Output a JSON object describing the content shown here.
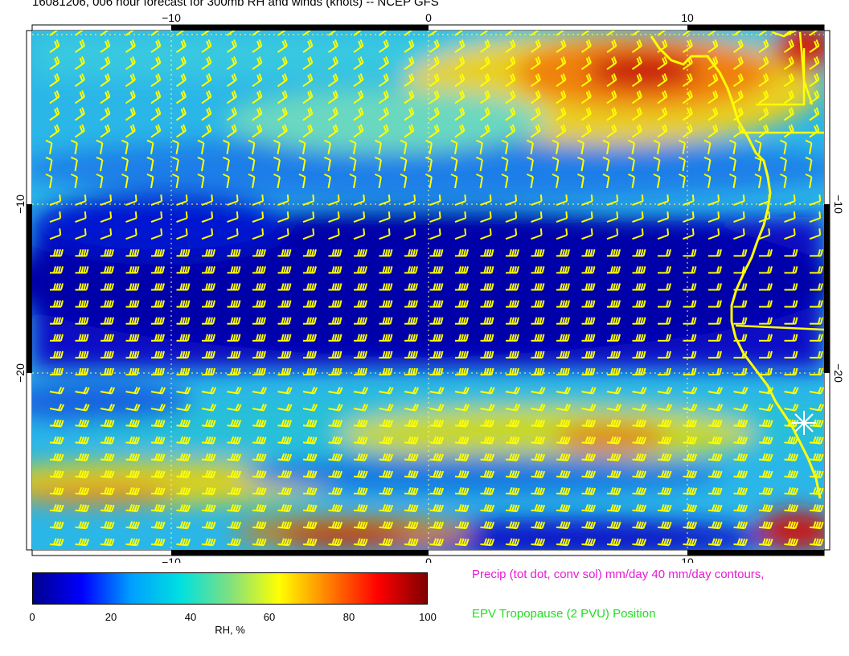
{
  "title": "16081206, 006 hour forecast for 300mb RH and winds (knots) -- NCEP GFS",
  "map": {
    "lon_ticks": [
      "−10",
      "0",
      "10"
    ],
    "lat_ticks": [
      "−10",
      "−20"
    ],
    "lon_range": [
      -15,
      15.3
    ],
    "lat_range": [
      -29.8,
      0.2
    ],
    "gridlines": "dotted",
    "station_marker": "asterisk-icon"
  },
  "colorbar": {
    "label": "RH, %",
    "ticks": [
      "0",
      "20",
      "40",
      "60",
      "80",
      "100"
    ],
    "range": [
      0,
      100
    ],
    "colors": [
      "#00008f",
      "#0000ff",
      "#00a0ff",
      "#00e0e0",
      "#80e080",
      "#ffff00",
      "#ff8000",
      "#ff0000",
      "#800000"
    ]
  },
  "legend": {
    "precip": "Precip (tot dot, conv sol) mm/day 40 mm/day contours,",
    "epv": "EPV Tropopause (2 PVU) Position"
  },
  "colors": {
    "barbs": "#ffff00",
    "coastline": "#ffff00",
    "precip_legend": "#e81ad6",
    "epv_legend": "#22dd22"
  }
}
